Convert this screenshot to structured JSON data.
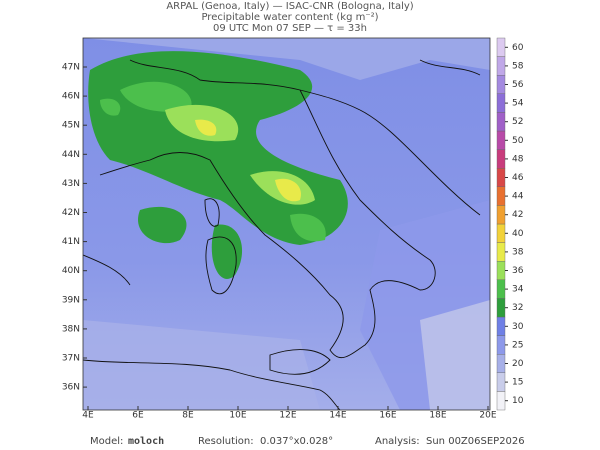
{
  "header": {
    "lines": [
      "ARPAL (Genoa, Italy)  —  ISAC-CNR (Bologna, Italy)",
      "Precipitable water content (kg m⁻²)",
      "09 UTC Mon 07 SEP  —  τ = 33h"
    ]
  },
  "map": {
    "lat_labels": [
      "47N",
      "46N",
      "45N",
      "44N",
      "43N",
      "42N",
      "41N",
      "40N",
      "39N",
      "38N",
      "37N",
      "36N"
    ],
    "lon_labels": [
      "4E",
      "6E",
      "8E",
      "10E",
      "12E",
      "14E",
      "16E",
      "18E",
      "20E"
    ]
  },
  "colorbar": {
    "ticks": [
      10,
      15,
      20,
      25,
      30,
      32,
      34,
      36,
      38,
      40,
      42,
      44,
      46,
      48,
      50,
      52,
      54,
      56,
      58,
      60
    ],
    "colors": [
      "#f2f2f7",
      "#c9cdea",
      "#a7b0e8",
      "#8d99ea",
      "#6f80e6",
      "#2e9e3c",
      "#4cbf4c",
      "#9be05a",
      "#e8ea4a",
      "#f2d23a",
      "#f0a030",
      "#e87030",
      "#d84848",
      "#c83c7c",
      "#b84aa8",
      "#a060c8",
      "#8c6ed8",
      "#a48ae0",
      "#c0a8e8",
      "#dccaf0"
    ]
  },
  "footer": {
    "model_label": "Model:",
    "model": "moloch",
    "resolution_label": "Resolution:",
    "resolution": "0.037°x0.028°",
    "analysis_label": "Analysis:",
    "analysis": "Sun 00Z06SEP2026"
  }
}
